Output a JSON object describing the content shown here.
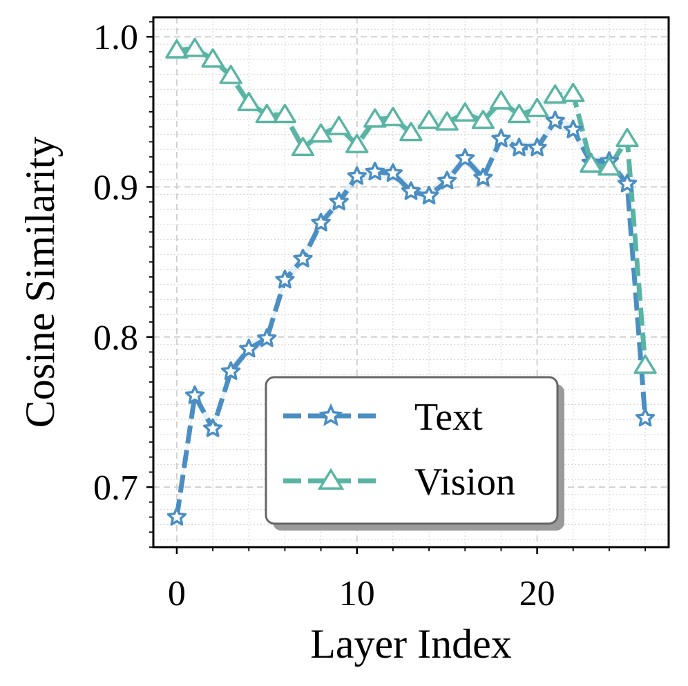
{
  "chart_data": {
    "type": "line",
    "xlabel": "Layer Index",
    "ylabel": "Cosine Similarity",
    "xlim": [
      -1.3,
      27.3
    ],
    "ylim": [
      0.66,
      1.013
    ],
    "x_ticks": [
      0,
      10,
      20
    ],
    "x_tick_labels": [
      "0",
      "10",
      "20"
    ],
    "y_ticks": [
      0.7,
      0.8,
      0.9,
      1.0
    ],
    "y_tick_labels": [
      "0.7",
      "0.8",
      "0.9",
      "1.0"
    ],
    "grid": true,
    "legend_position": "lower-center",
    "series": [
      {
        "name": "Text",
        "color": "#4a8ec2",
        "marker": "star",
        "line_style": "dashed",
        "x": [
          0,
          1,
          2,
          3,
          4,
          5,
          6,
          7,
          8,
          9,
          10,
          11,
          12,
          13,
          14,
          15,
          16,
          17,
          18,
          19,
          20,
          21,
          22,
          23,
          24,
          25,
          26
        ],
        "values": [
          0.68,
          0.761,
          0.739,
          0.777,
          0.792,
          0.799,
          0.838,
          0.852,
          0.876,
          0.89,
          0.907,
          0.91,
          0.909,
          0.897,
          0.894,
          0.904,
          0.919,
          0.906,
          0.932,
          0.926,
          0.926,
          0.944,
          0.938,
          0.916,
          0.917,
          0.902,
          0.746
        ]
      },
      {
        "name": "Vision",
        "color": "#5ab4a4",
        "marker": "triangle",
        "line_style": "dashed",
        "x": [
          0,
          1,
          2,
          3,
          4,
          5,
          6,
          7,
          8,
          9,
          10,
          11,
          12,
          13,
          14,
          15,
          16,
          17,
          18,
          19,
          20,
          21,
          22,
          23,
          24,
          25,
          26
        ],
        "values": [
          0.991,
          0.992,
          0.985,
          0.974,
          0.956,
          0.948,
          0.948,
          0.926,
          0.935,
          0.94,
          0.928,
          0.945,
          0.946,
          0.936,
          0.944,
          0.943,
          0.949,
          0.944,
          0.957,
          0.948,
          0.952,
          0.961,
          0.962,
          0.915,
          0.913,
          0.932,
          0.781
        ]
      }
    ]
  }
}
